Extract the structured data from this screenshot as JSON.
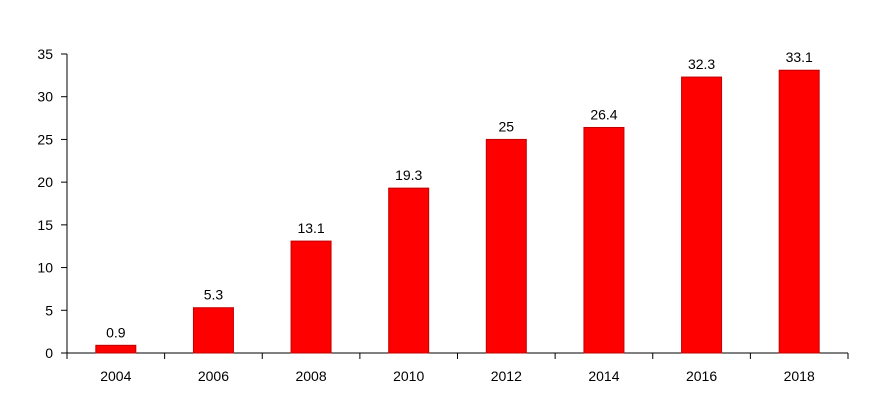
{
  "chart_data": {
    "type": "bar",
    "title": "",
    "xlabel": "",
    "ylabel": "",
    "categories": [
      "2004",
      "2006",
      "2008",
      "2010",
      "2012",
      "2014",
      "2016",
      "2018"
    ],
    "values": [
      0.9,
      5.3,
      13.1,
      19.3,
      25,
      26.4,
      32.3,
      33.1
    ],
    "data_labels": [
      "0.9",
      "5.3",
      "13.1",
      "19.3",
      "25",
      "26.4",
      "32.3",
      "33.1"
    ],
    "y_ticks": [
      0,
      5,
      10,
      15,
      20,
      25,
      30,
      35
    ],
    "ylim": [
      0,
      35
    ],
    "grid": false,
    "legend": "none",
    "bar_color": "#ff0000",
    "bar_edge_color": "#c00000"
  }
}
